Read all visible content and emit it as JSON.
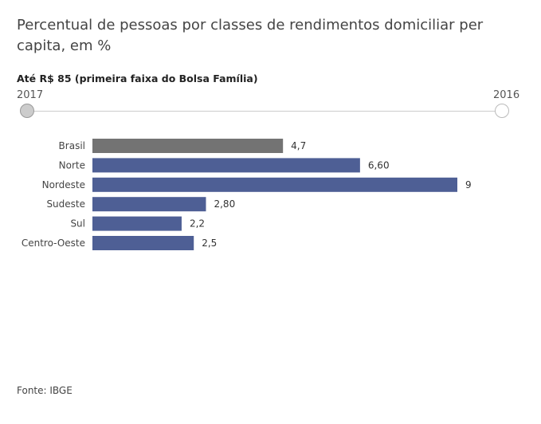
{
  "header": {
    "title": "Percentual de pessoas por classes de rendimentos domiciliar per capita, em %",
    "subtitle": "Até R$ 85 (primeira faixa do Bolsa Família)"
  },
  "slider": {
    "start_label": "2017",
    "end_label": "2016",
    "selected": "2017"
  },
  "colors": {
    "highlight": "#737373",
    "bar": "#4e5f95"
  },
  "chart_data": {
    "type": "bar",
    "orientation": "horizontal",
    "title": "Percentual de pessoas por classes de rendimentos domiciliar per capita, em %",
    "subtitle": "Até R$ 85 (primeira faixa do Bolsa Família)",
    "categories": [
      "Brasil",
      "Norte",
      "Nordeste",
      "Sudeste",
      "Sul",
      "Centro-Oeste"
    ],
    "values": [
      4.7,
      6.6,
      9,
      2.8,
      2.2,
      2.5
    ],
    "value_labels": [
      "4,7",
      "6,60",
      "9",
      "2,80",
      "2,2",
      "2,5"
    ],
    "highlighted_category": "Brasil",
    "xlim": [
      0,
      9
    ],
    "grid": false,
    "legend": "none"
  },
  "footer": {
    "source": "Fonte: IBGE"
  }
}
